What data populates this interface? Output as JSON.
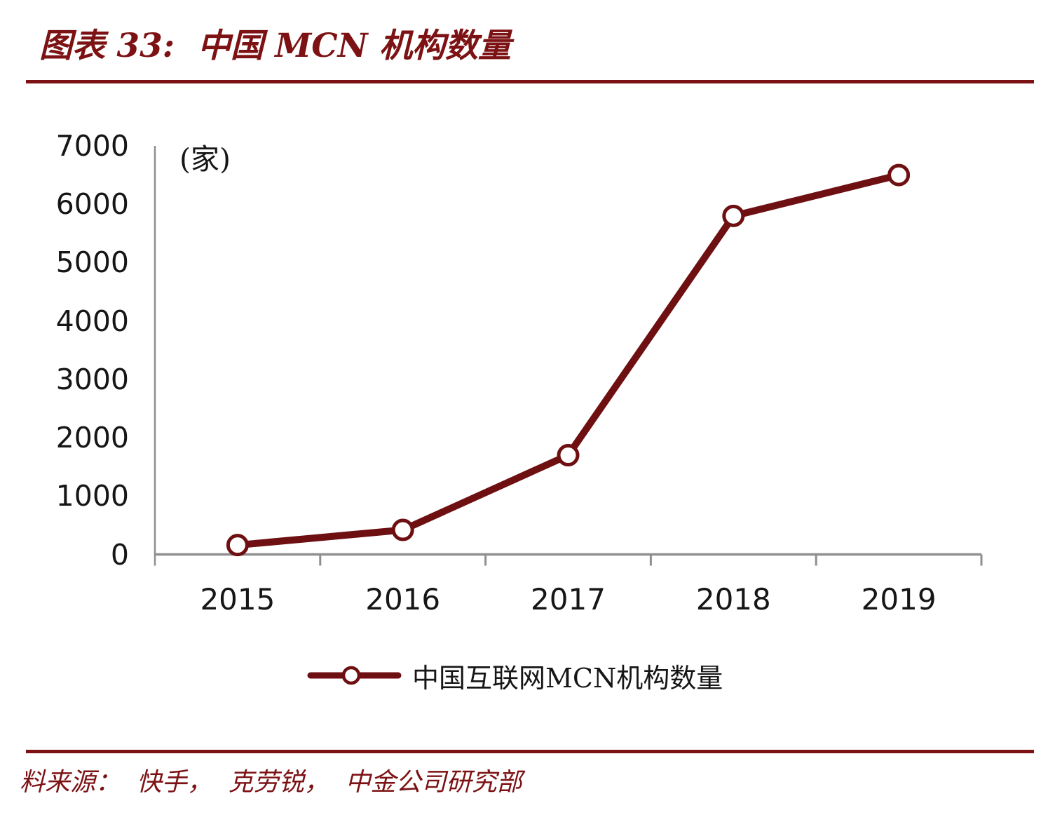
{
  "page": {
    "title": "图表 33:  中国 MCN 机构数量",
    "source": "料来源：  快手，  克劳锐，  中金公司研究部"
  },
  "colors": {
    "accent_dark_red": "#7c1214",
    "series_line": "#6e0f11",
    "axis_gray": "#8f8f8f",
    "text_black": "#161616",
    "marker_fill": "#ffffff"
  },
  "chart_data": {
    "type": "line",
    "title": "中国 MCN 机构数量",
    "unit_label": "(家)",
    "categories": [
      "2015",
      "2016",
      "2017",
      "2018",
      "2019"
    ],
    "series": [
      {
        "name": "中国互联网MCN机构数量",
        "values": [
          160,
          420,
          1700,
          5800,
          6500
        ]
      }
    ],
    "ylim": [
      0,
      7000
    ],
    "y_tick_step": 1000,
    "y_tick_labels": [
      "0",
      "1000",
      "2000",
      "3000",
      "4000",
      "5000",
      "6000",
      "7000"
    ],
    "grid": false,
    "legend_position": "bottom",
    "marker": "open-circle"
  }
}
